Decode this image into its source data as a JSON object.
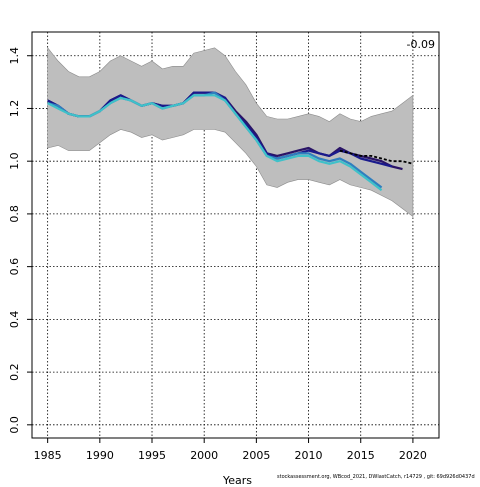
{
  "chart_data": {
    "type": "line",
    "xlabel": "Years",
    "ylabel": "",
    "xlim": [
      1983.5,
      2022.5
    ],
    "ylim": [
      -0.05,
      1.49
    ],
    "x_ticks": [
      1985,
      1990,
      1995,
      2000,
      2005,
      2010,
      2015,
      2020
    ],
    "y_ticks": [
      0.0,
      0.2,
      0.4,
      0.6,
      0.8,
      1.0,
      1.2,
      1.4
    ],
    "grid": true,
    "annotation": "-0.09",
    "band": {
      "x": [
        1985,
        1986,
        1987,
        1988,
        1989,
        1990,
        1991,
        1992,
        1993,
        1994,
        1995,
        1996,
        1997,
        1998,
        1999,
        2000,
        2001,
        2002,
        2003,
        2004,
        2005,
        2006,
        2007,
        2008,
        2009,
        2010,
        2011,
        2012,
        2013,
        2014,
        2015,
        2016,
        2017,
        2018,
        2019,
        2020
      ],
      "upper": [
        1.43,
        1.38,
        1.34,
        1.32,
        1.32,
        1.34,
        1.38,
        1.4,
        1.38,
        1.36,
        1.38,
        1.35,
        1.36,
        1.36,
        1.41,
        1.42,
        1.43,
        1.4,
        1.34,
        1.29,
        1.22,
        1.17,
        1.16,
        1.16,
        1.17,
        1.18,
        1.17,
        1.15,
        1.18,
        1.16,
        1.15,
        1.17,
        1.18,
        1.19,
        1.22,
        1.25
      ],
      "lower": [
        1.05,
        1.06,
        1.04,
        1.04,
        1.04,
        1.07,
        1.1,
        1.12,
        1.11,
        1.09,
        1.1,
        1.08,
        1.09,
        1.1,
        1.12,
        1.12,
        1.12,
        1.11,
        1.07,
        1.03,
        0.98,
        0.91,
        0.9,
        0.92,
        0.93,
        0.93,
        0.92,
        0.91,
        0.93,
        0.91,
        0.9,
        0.89,
        0.87,
        0.85,
        0.82,
        0.79
      ]
    },
    "series": [
      {
        "color": "#2a1466",
        "x": [
          1985,
          1986,
          1987,
          1988,
          1989,
          1990,
          1991,
          1992,
          1993,
          1994,
          1995,
          1996,
          1997,
          1998,
          1999,
          2000,
          2001,
          2002,
          2003,
          2004,
          2005,
          2006,
          2007,
          2008,
          2009,
          2010,
          2011,
          2012,
          2013,
          2014,
          2015,
          2016,
          2017,
          2018,
          2019
        ],
        "values": [
          1.23,
          1.21,
          1.18,
          1.17,
          1.17,
          1.19,
          1.23,
          1.25,
          1.23,
          1.21,
          1.22,
          1.21,
          1.21,
          1.22,
          1.26,
          1.26,
          1.26,
          1.24,
          1.19,
          1.15,
          1.1,
          1.03,
          1.02,
          1.03,
          1.04,
          1.05,
          1.03,
          1.02,
          1.05,
          1.03,
          1.02,
          1.01,
          1.0,
          0.98,
          0.97
        ]
      },
      {
        "color": "#1a1a8c",
        "x": [
          1985,
          1986,
          1987,
          1988,
          1989,
          1990,
          1991,
          1992,
          1993,
          1994,
          1995,
          1996,
          1997,
          1998,
          1999,
          2000,
          2001,
          2002,
          2003,
          2004,
          2005,
          2006,
          2007,
          2008,
          2009,
          2010,
          2011,
          2012,
          2013,
          2014,
          2015,
          2016,
          2017,
          2018
        ],
        "values": [
          1.23,
          1.21,
          1.18,
          1.17,
          1.17,
          1.19,
          1.23,
          1.25,
          1.23,
          1.21,
          1.22,
          1.21,
          1.21,
          1.22,
          1.26,
          1.26,
          1.26,
          1.24,
          1.18,
          1.14,
          1.09,
          1.03,
          1.01,
          1.02,
          1.03,
          1.04,
          1.03,
          1.02,
          1.04,
          1.03,
          1.01,
          1.0,
          0.99,
          0.98
        ]
      },
      {
        "color": "#2f7fbf",
        "x": [
          1985,
          1986,
          1987,
          1988,
          1989,
          1990,
          1991,
          1992,
          1993,
          1994,
          1995,
          1996,
          1997,
          1998,
          1999,
          2000,
          2001,
          2002,
          2003,
          2004,
          2005,
          2006,
          2007,
          2008,
          2009,
          2010,
          2011,
          2012,
          2013,
          2014,
          2015,
          2016,
          2017
        ],
        "values": [
          1.22,
          1.21,
          1.18,
          1.17,
          1.17,
          1.19,
          1.22,
          1.24,
          1.23,
          1.21,
          1.22,
          1.2,
          1.21,
          1.22,
          1.25,
          1.25,
          1.26,
          1.23,
          1.18,
          1.13,
          1.08,
          1.02,
          1.01,
          1.02,
          1.03,
          1.03,
          1.01,
          1.0,
          1.01,
          0.99,
          0.96,
          0.93,
          0.9
        ]
      },
      {
        "color": "#3fc1c9",
        "x": [
          1985,
          1986,
          1987,
          1988,
          1989,
          1990,
          1991,
          1992,
          1993,
          1994,
          1995,
          1996,
          1997,
          1998,
          1999,
          2000,
          2001,
          2002,
          2003,
          2004,
          2005,
          2006,
          2007,
          2008,
          2009,
          2010,
          2011,
          2012,
          2013,
          2014,
          2015,
          2016,
          2017
        ],
        "values": [
          1.22,
          1.2,
          1.18,
          1.17,
          1.17,
          1.19,
          1.22,
          1.24,
          1.23,
          1.21,
          1.22,
          1.2,
          1.21,
          1.22,
          1.25,
          1.25,
          1.25,
          1.23,
          1.18,
          1.13,
          1.08,
          1.02,
          1.0,
          1.01,
          1.02,
          1.02,
          1.0,
          0.99,
          1.0,
          0.98,
          0.95,
          0.92,
          0.89
        ]
      }
    ],
    "dashed_series": {
      "color": "#000000",
      "x": [
        2013,
        2014,
        2015,
        2016,
        2017,
        2018,
        2019,
        2020
      ],
      "values": [
        1.04,
        1.03,
        1.02,
        1.02,
        1.01,
        1.0,
        1.0,
        0.99
      ]
    }
  },
  "footer": "stockassessment.org, WBcod_2021, DWlastCatch, r14729 , git: 69d926d0437d"
}
